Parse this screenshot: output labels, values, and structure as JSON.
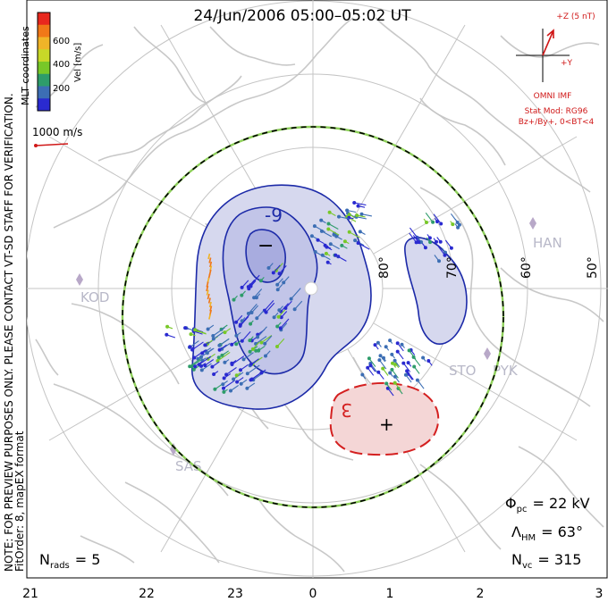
{
  "title": "24/Jun/2006 05:00–05:02 UT",
  "side_note": {
    "line1": "NOTE: FOR PREVIEW PURPOSES ONLY. PLEASE CONTACT VT-SD STAFF FOR VERIFICATION.",
    "line2": "FitOrder: 8, mapEX format"
  },
  "colorbar": {
    "coord_label": "MLT coordinates",
    "unit_label": "Vel [m/s]",
    "ticks": [
      "600",
      "400",
      "200"
    ],
    "colors": [
      "#e8281e",
      "#f07818",
      "#f0b428",
      "#c8d828",
      "#78c828",
      "#2e9c6a",
      "#3c6eb4",
      "#2a2ad0"
    ]
  },
  "scale_vector": {
    "label": "1000 m/s",
    "color": "#d01818"
  },
  "imf": {
    "z_label": "+Z (5 nT)",
    "y_label": "+Y",
    "source": "OMNI IMF",
    "model_line1": "Stat Mod: RG96",
    "model_line2": "Bz+/By+, 0<BT<4",
    "color": "#d01818"
  },
  "latitude_labels": [
    "80°",
    "70°",
    "60°",
    "50°"
  ],
  "station_labels": [
    "KOD",
    "HAN",
    "STO",
    "PYK",
    "SAS"
  ],
  "contour_labels": {
    "negative_value": "-9",
    "positive_value": "3",
    "min_marker": "−",
    "max_marker": "+"
  },
  "stats": {
    "pcp_symbol": "Φ",
    "pcp_sub": "pc",
    "pcp_value": "= 22 kV",
    "hm_symbol": "Λ",
    "hm_sub": "HM",
    "hm_value": "= 63°",
    "nvc_symbol": "N",
    "nvc_sub": "vc",
    "nvc_value": "= 315",
    "nrads_symbol": "N",
    "nrads_sub": "rads",
    "nrads_value": "= 5"
  },
  "mlt_ticks": [
    "21",
    "22",
    "23",
    "0",
    "1",
    "2",
    "3"
  ],
  "colors": {
    "neg_fill": "#d6d8ee",
    "neg_inner_fill": "#a8acdf",
    "neg_line": "#1c2aa8",
    "pos_fill": "#f4d6d6",
    "pos_line": "#d42020",
    "boundary_green": "#8ed05a",
    "coast": "#c8c8c8",
    "grid": "#c4c4c4",
    "station": "#b8a8c8"
  }
}
